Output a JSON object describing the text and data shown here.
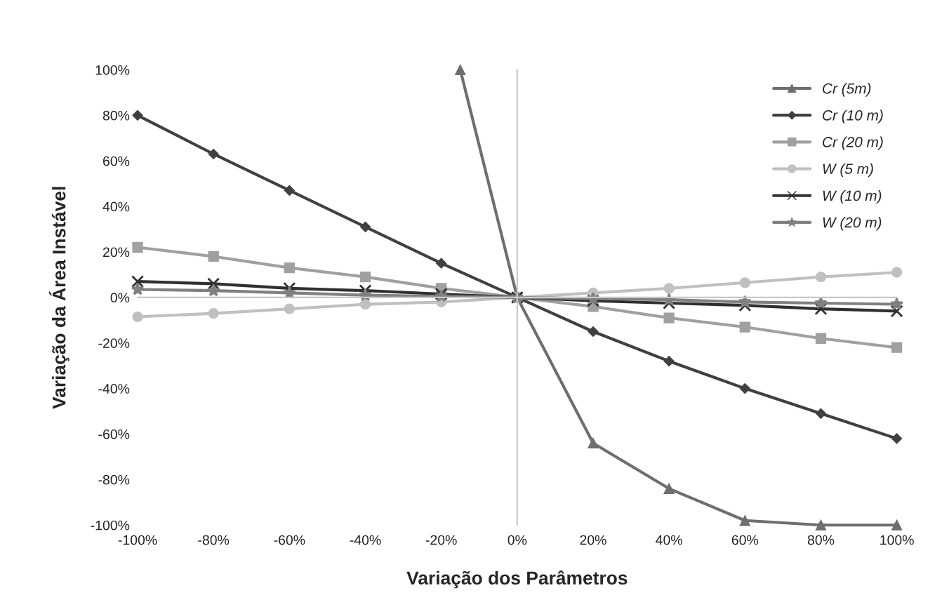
{
  "chart_data": {
    "type": "line",
    "xlabel": "Variação dos Parâmetros",
    "ylabel": "Variação da Área Instável",
    "x": [
      -100,
      -80,
      -60,
      -40,
      -20,
      0,
      20,
      40,
      60,
      80,
      100
    ],
    "xlim": [
      -100,
      100
    ],
    "ylim": [
      -100,
      100
    ],
    "xticks": [
      {
        "value": -100,
        "label": "-100%"
      },
      {
        "value": -80,
        "label": "-80%"
      },
      {
        "value": -60,
        "label": "-60%"
      },
      {
        "value": -40,
        "label": "-40%"
      },
      {
        "value": -20,
        "label": "-20%"
      },
      {
        "value": 0,
        "label": "0%"
      },
      {
        "value": 20,
        "label": "20%"
      },
      {
        "value": 40,
        "label": "40%"
      },
      {
        "value": 60,
        "label": "60%"
      },
      {
        "value": 80,
        "label": "80%"
      },
      {
        "value": 100,
        "label": "100%"
      }
    ],
    "yticks": [
      {
        "value": -100,
        "label": "-100%"
      },
      {
        "value": -80,
        "label": "-80%"
      },
      {
        "value": -60,
        "label": "-60%"
      },
      {
        "value": -40,
        "label": "-40%"
      },
      {
        "value": -20,
        "label": "-20%"
      },
      {
        "value": 0,
        "label": "0%"
      },
      {
        "value": 20,
        "label": "20%"
      },
      {
        "value": 40,
        "label": "40%"
      },
      {
        "value": 60,
        "label": "60%"
      },
      {
        "value": 80,
        "label": "80%"
      },
      {
        "value": 100,
        "label": "100%"
      }
    ],
    "legend": "top right",
    "series": [
      {
        "name": "Cr (5m)",
        "color": "#6e6e6e",
        "marker": "triangle",
        "x": [
          -15,
          0,
          20,
          40,
          60,
          80,
          100
        ],
        "values": [
          100,
          0,
          -64,
          -84,
          -98,
          -100,
          -100
        ]
      },
      {
        "name": "Cr (10 m)",
        "color": "#404040",
        "marker": "diamond",
        "values": [
          80,
          63,
          47,
          31,
          15,
          0,
          -15,
          -28,
          -40,
          -51,
          -62
        ]
      },
      {
        "name": "Cr (20 m)",
        "color": "#a0a0a0",
        "marker": "square",
        "values": [
          22,
          18,
          13,
          9,
          4,
          0,
          -4,
          -9,
          -13,
          -18,
          -22
        ]
      },
      {
        "name": "W (5 m)",
        "color": "#c0c0c0",
        "marker": "circle",
        "values": [
          -8.5,
          -7,
          -5,
          -3,
          -2,
          0,
          2,
          4,
          6.5,
          9,
          11
        ]
      },
      {
        "name": "W (10 m)",
        "color": "#303030",
        "marker": "cross",
        "values": [
          7,
          6,
          4,
          3,
          1.5,
          0,
          -1.5,
          -2.5,
          -3.5,
          -5,
          -6
        ]
      },
      {
        "name": "W (20 m)",
        "color": "#808080",
        "marker": "star",
        "values": [
          3.5,
          3,
          2,
          1,
          0.5,
          0,
          -0.5,
          -1,
          -2,
          -2.5,
          -3
        ]
      }
    ]
  }
}
